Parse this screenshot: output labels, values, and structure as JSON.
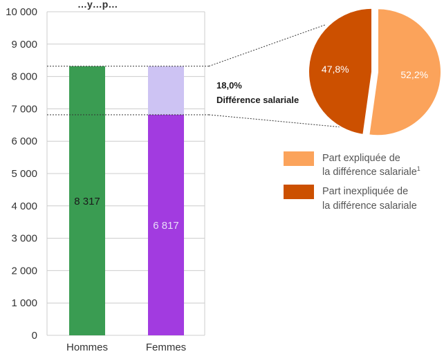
{
  "chart_data": {
    "type": "bar",
    "title_fragment": "…y…p…",
    "categories": [
      "Hommes",
      "Femmes"
    ],
    "values": [
      8317,
      6817
    ],
    "value_labels": [
      "8 317",
      "6 817"
    ],
    "ylim": [
      0,
      10000
    ],
    "yticks": [
      0,
      1000,
      2000,
      3000,
      4000,
      5000,
      6000,
      7000,
      8000,
      9000,
      10000
    ],
    "ytick_labels": [
      "0",
      "1 000",
      "2 000",
      "3 000",
      "4 000",
      "5 000",
      "6 000",
      "7 000",
      "8 000",
      "9 000",
      "10 000"
    ],
    "gap": {
      "percent_label": "18,0%",
      "label": "Différence salariale",
      "top": 8317,
      "bottom": 6817
    },
    "pie": {
      "type": "pie",
      "slices": [
        {
          "label": "Part expliquée de la différence salariale",
          "value": 52.2,
          "value_label": "52,2%"
        },
        {
          "label": "Part inexpliquée de la différence salariale",
          "value": 47.8,
          "value_label": "47,8%"
        }
      ]
    },
    "legend": {
      "placement": "right",
      "items": [
        {
          "line1": "Part expliquée de",
          "line2": "la différence salariale",
          "sup": "1"
        },
        {
          "line1": "Part inexpliquée de",
          "line2": "la différence salariale",
          "sup": ""
        }
      ]
    },
    "colors": {
      "hommes": "#3a9c52",
      "femmes": "#a23be0",
      "gap": "#cdc3f3",
      "explained": "#fba35b",
      "unexplained": "#cc5000",
      "axis": "#cccccc",
      "dotted": "#333333"
    }
  }
}
